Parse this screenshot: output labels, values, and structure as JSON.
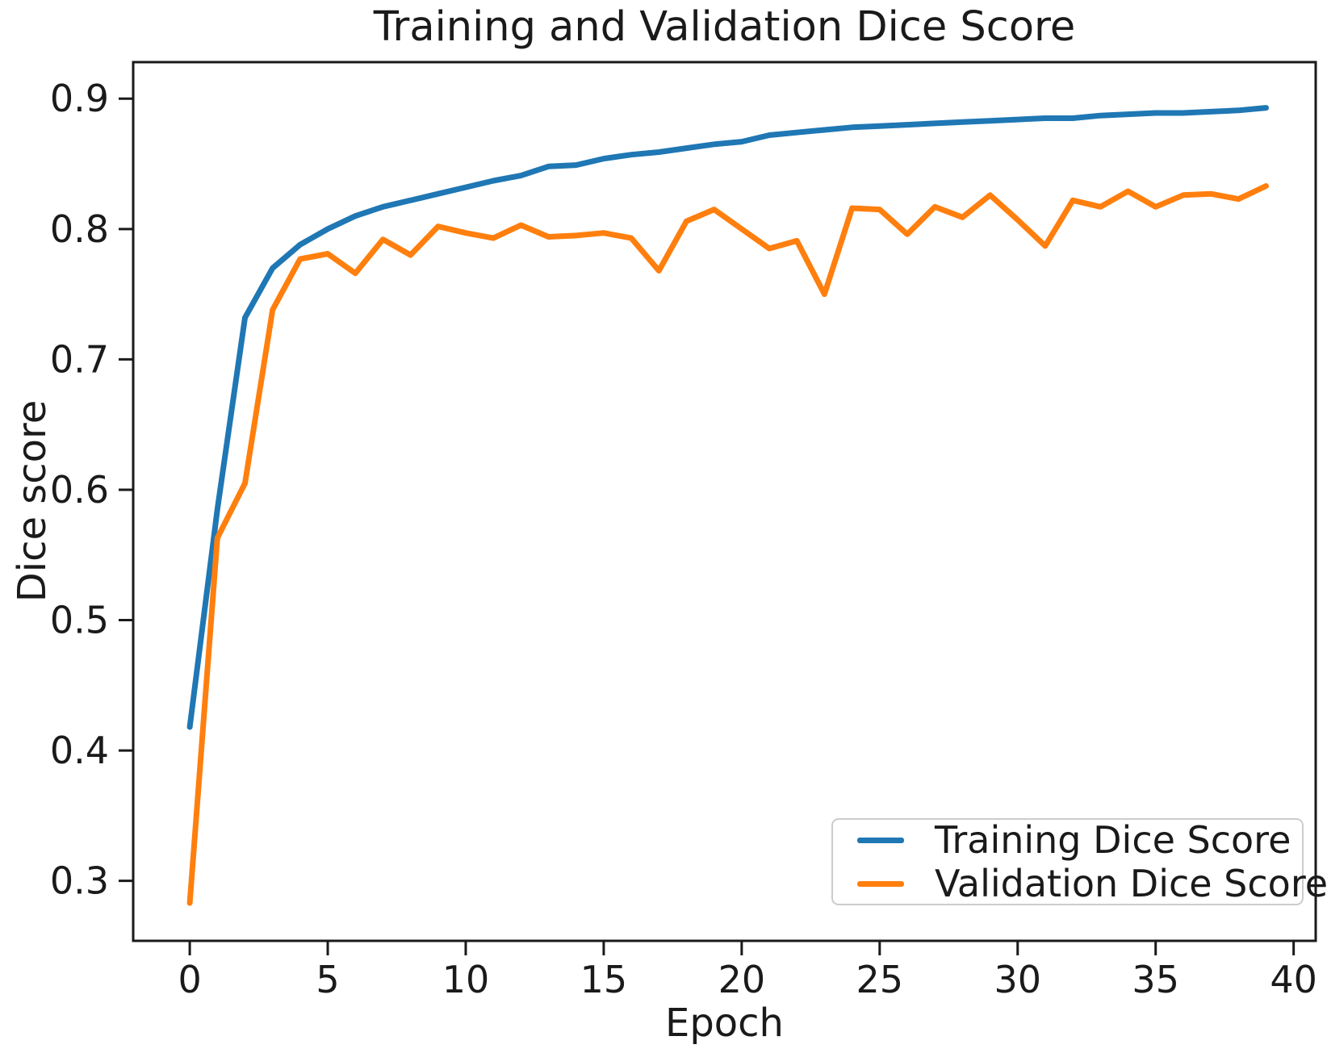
{
  "figure": {
    "title": "Training and Validation Dice Score",
    "xlabel": "Epoch",
    "ylabel": "Dice score"
  },
  "legend": {
    "items": [
      {
        "label": "Training Dice Score",
        "color": "#1f77b4"
      },
      {
        "label": "Validation Dice Score",
        "color": "#ff7f0e"
      }
    ]
  },
  "chart_data": {
    "type": "line",
    "title": "Training and Validation Dice Score",
    "xlabel": "Epoch",
    "ylabel": "Dice score",
    "grid": false,
    "legend_position": "lower right",
    "xticks": [
      0,
      5,
      10,
      15,
      20,
      25,
      30,
      35,
      40
    ],
    "yticks": [
      0.3,
      0.4,
      0.5,
      0.6,
      0.7,
      0.8,
      0.9
    ],
    "xlim": [
      -2.05,
      40.8
    ],
    "ylim": [
      0.254,
      0.928
    ],
    "x": [
      0,
      1,
      2,
      3,
      4,
      5,
      6,
      7,
      8,
      9,
      10,
      11,
      12,
      13,
      14,
      15,
      16,
      17,
      18,
      19,
      20,
      21,
      22,
      23,
      24,
      25,
      26,
      27,
      28,
      29,
      30,
      31,
      32,
      33,
      34,
      35,
      36,
      37,
      38,
      39
    ],
    "series": [
      {
        "name": "Training Dice Score",
        "color": "#1f77b4",
        "values": [
          0.418,
          0.585,
          0.732,
          0.77,
          0.788,
          0.8,
          0.81,
          0.817,
          0.822,
          0.827,
          0.832,
          0.837,
          0.841,
          0.848,
          0.849,
          0.854,
          0.857,
          0.859,
          0.862,
          0.865,
          0.867,
          0.872,
          0.874,
          0.876,
          0.878,
          0.879,
          0.88,
          0.881,
          0.882,
          0.883,
          0.884,
          0.885,
          0.885,
          0.887,
          0.888,
          0.889,
          0.889,
          0.89,
          0.891,
          0.893
        ]
      },
      {
        "name": "Validation Dice Score",
        "color": "#ff7f0e",
        "values": [
          0.283,
          0.563,
          0.605,
          0.738,
          0.777,
          0.781,
          0.766,
          0.792,
          0.78,
          0.802,
          0.797,
          0.793,
          0.803,
          0.794,
          0.795,
          0.797,
          0.793,
          0.768,
          0.806,
          0.815,
          0.8,
          0.785,
          0.791,
          0.75,
          0.816,
          0.815,
          0.796,
          0.817,
          0.809,
          0.826,
          0.807,
          0.787,
          0.822,
          0.817,
          0.829,
          0.817,
          0.826,
          0.827,
          0.823,
          0.833
        ]
      }
    ]
  }
}
